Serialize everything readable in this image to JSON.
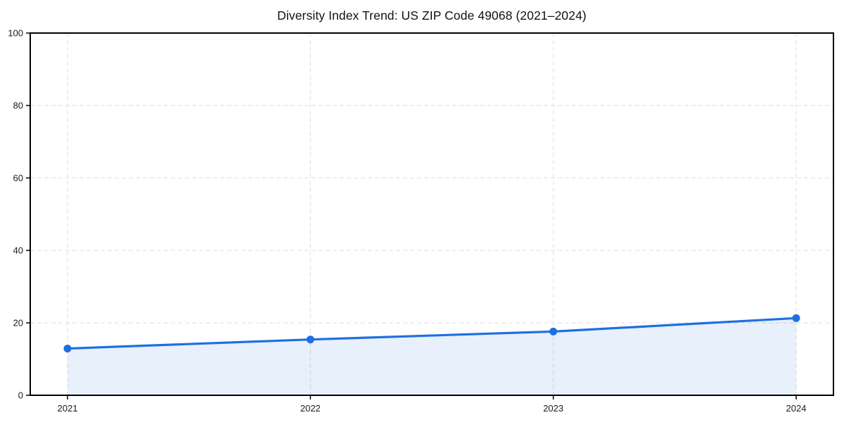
{
  "page": {
    "background_color": "#ffffff"
  },
  "chart_data": {
    "type": "area",
    "title": "Diversity Index Trend: US ZIP Code 49068 (2021–2024)",
    "categories": [
      "2021",
      "2022",
      "2023",
      "2024"
    ],
    "series": [
      {
        "name": "Diversity Index",
        "values": [
          12.9,
          15.4,
          17.6,
          21.3
        ]
      }
    ],
    "xlabel": "",
    "ylabel": "",
    "ylim": [
      0,
      100
    ],
    "yticks": [
      0,
      20,
      40,
      60,
      80,
      100
    ],
    "ytick_labels": [
      "0",
      "20",
      "40",
      "60",
      "80",
      "100"
    ],
    "grid": true,
    "grid_style": "dashed",
    "legend_position": "none",
    "colors": {
      "line": "#1f6fe0",
      "marker": "#1f6fe0",
      "area_fill": "#1f6fe0",
      "area_opacity": 0.1,
      "grid": "#e4e4e4",
      "spine": "#000000",
      "tick": "#000000",
      "tick_label": "#1a1a1a",
      "title": "#111111"
    }
  }
}
